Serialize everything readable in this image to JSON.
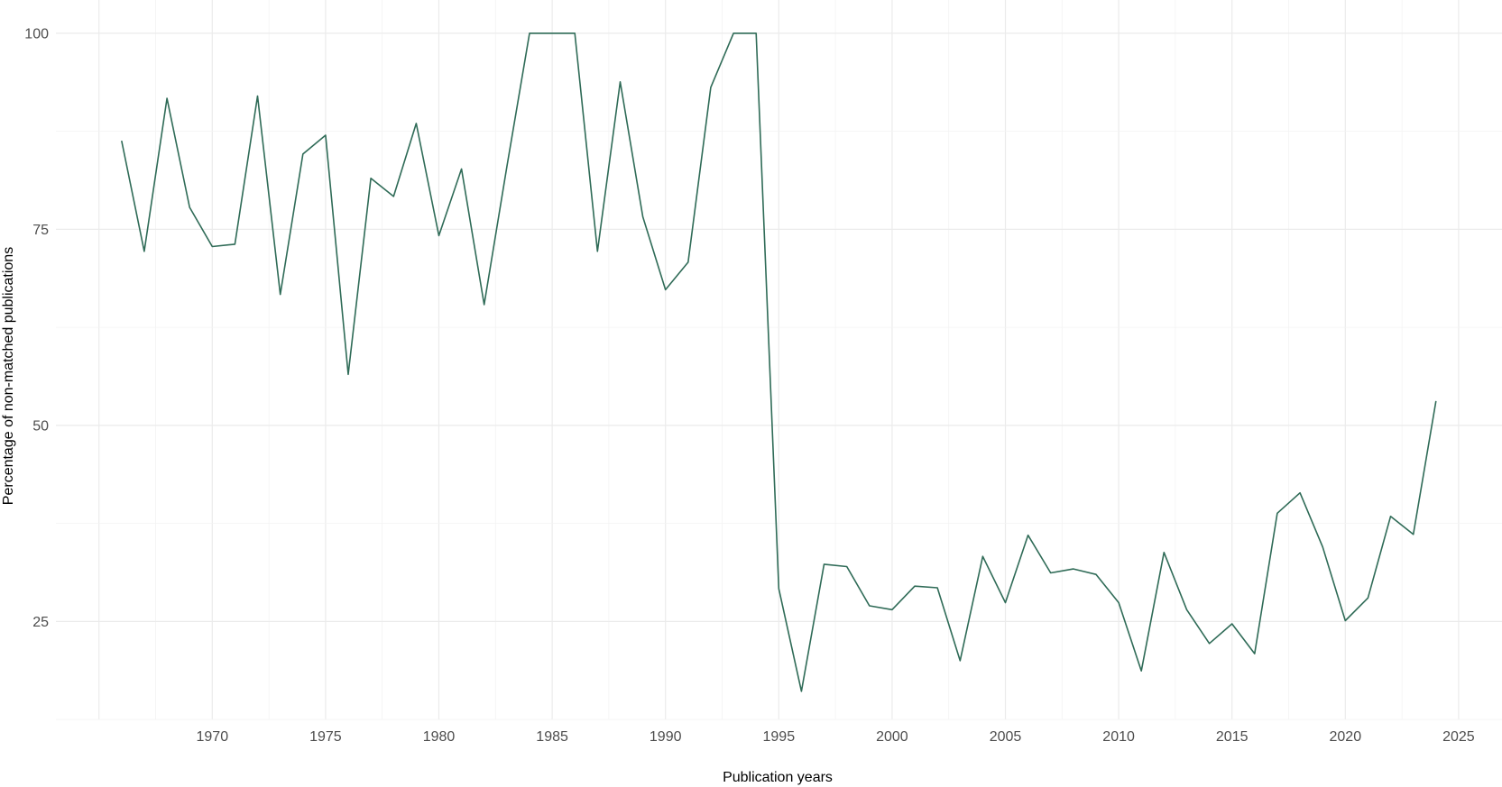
{
  "chart_data": {
    "type": "line",
    "title": "",
    "xlabel": "Publication years",
    "ylabel": "Percentage of non-matched publications",
    "xlim": [
      1965,
      2027
    ],
    "ylim": [
      12.5,
      102
    ],
    "x_ticks": [
      1970,
      1975,
      1980,
      1985,
      1990,
      1995,
      2000,
      2005,
      2010,
      2015,
      2020,
      2025
    ],
    "y_ticks": [
      25,
      50,
      75,
      100
    ],
    "grid": true,
    "line_color": "#2f6b57",
    "x": [
      1966,
      1967,
      1968,
      1969,
      1970,
      1971,
      1972,
      1973,
      1974,
      1975,
      1976,
      1977,
      1978,
      1979,
      1980,
      1981,
      1982,
      1983,
      1984,
      1985,
      1986,
      1987,
      1988,
      1989,
      1990,
      1991,
      1992,
      1993,
      1994,
      1995,
      1996,
      1997,
      1998,
      1999,
      2000,
      2001,
      2002,
      2003,
      2004,
      2005,
      2006,
      2007,
      2008,
      2009,
      2010,
      2011,
      2012,
      2013,
      2014,
      2015,
      2016,
      2017,
      2018,
      2019,
      2020,
      2021,
      2022,
      2023,
      2024
    ],
    "values": [
      86.3,
      72.2,
      91.7,
      77.8,
      72.8,
      73.1,
      92.0,
      66.7,
      84.6,
      87.0,
      56.5,
      81.5,
      79.2,
      88.5,
      74.2,
      82.7,
      65.4,
      83.0,
      100,
      100,
      100,
      72.2,
      93.8,
      76.6,
      67.3,
      70.8,
      93.1,
      100,
      100,
      29.2,
      16.1,
      32.3,
      32.0,
      27.0,
      26.5,
      29.5,
      29.3,
      20.0,
      33.3,
      27.4,
      36.0,
      31.2,
      31.7,
      31.0,
      27.4,
      18.7,
      33.8,
      26.5,
      22.2,
      24.7,
      20.9,
      38.8,
      41.4,
      34.5,
      25.1,
      28.0,
      38.4,
      36.1,
      53.1
    ]
  }
}
